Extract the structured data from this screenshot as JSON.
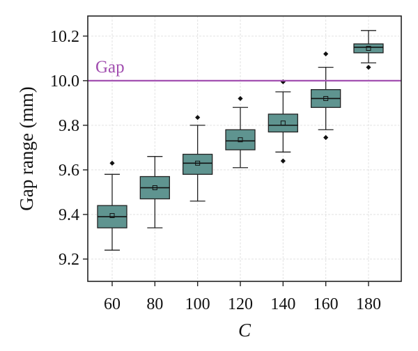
{
  "chart_data": {
    "type": "box",
    "xlabel": "C",
    "ylabel": "Gap range (mm)",
    "categories": [
      "60",
      "80",
      "100",
      "120",
      "140",
      "160",
      "180"
    ],
    "ylim": [
      9.1,
      10.29
    ],
    "yticks": [
      "9.2",
      "9.4",
      "9.6",
      "9.8",
      "10.0",
      "10.2"
    ],
    "grid": true,
    "box_color": "#5f9490",
    "reference_line": {
      "label": "Gap",
      "value": 10.0,
      "color": "#a24fb0"
    },
    "boxes": [
      {
        "category": "60",
        "whisker_low": 9.24,
        "q1": 9.34,
        "median": 9.39,
        "mean": 9.395,
        "q3": 9.44,
        "whisker_high": 9.58,
        "outliers": [
          9.63
        ]
      },
      {
        "category": "80",
        "whisker_low": 9.34,
        "q1": 9.47,
        "median": 9.52,
        "mean": 9.52,
        "q3": 9.57,
        "whisker_high": 9.66,
        "outliers": []
      },
      {
        "category": "100",
        "whisker_low": 9.46,
        "q1": 9.58,
        "median": 9.63,
        "mean": 9.63,
        "q3": 9.67,
        "whisker_high": 9.8,
        "outliers": [
          9.835
        ]
      },
      {
        "category": "120",
        "whisker_low": 9.61,
        "q1": 9.69,
        "median": 9.73,
        "mean": 9.735,
        "q3": 9.78,
        "whisker_high": 9.88,
        "outliers": [
          9.92
        ]
      },
      {
        "category": "140",
        "whisker_low": 9.68,
        "q1": 9.77,
        "median": 9.8,
        "mean": 9.81,
        "q3": 9.85,
        "whisker_high": 9.95,
        "outliers": [
          9.64,
          9.995
        ]
      },
      {
        "category": "160",
        "whisker_low": 9.78,
        "q1": 9.88,
        "median": 9.92,
        "mean": 9.92,
        "q3": 9.96,
        "whisker_high": 10.06,
        "outliers": [
          9.745,
          10.12
        ]
      },
      {
        "category": "180",
        "whisker_low": 10.08,
        "q1": 10.125,
        "median": 10.15,
        "mean": 10.145,
        "q3": 10.165,
        "whisker_high": 10.225,
        "outliers": [
          10.06
        ]
      }
    ]
  }
}
